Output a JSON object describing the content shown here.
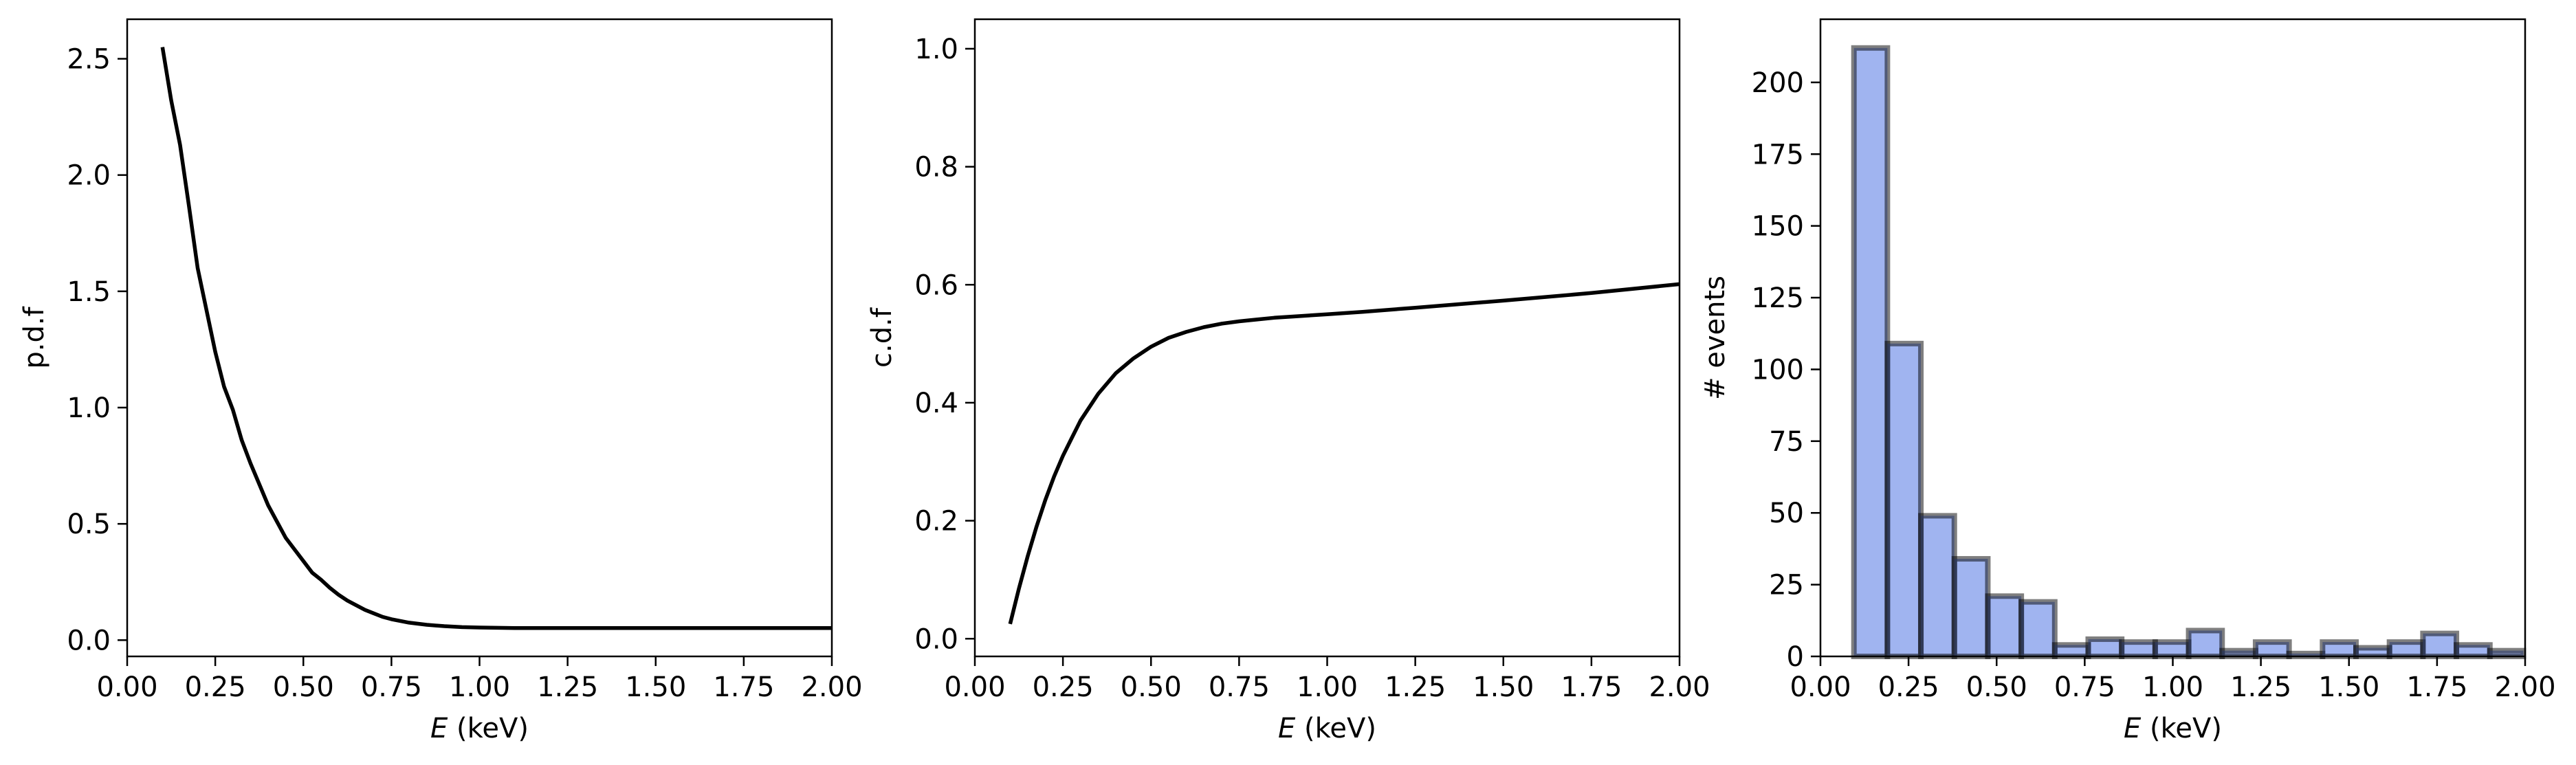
{
  "figure": {
    "background": "#ffffff"
  },
  "chart_data": [
    {
      "type": "line",
      "id": "pdf",
      "xlabel_var": "E",
      "xlabel_unit": " (keV)",
      "ylabel": "p.d.f",
      "xlim": [
        0.0,
        2.0
      ],
      "ylim": [
        -0.07,
        2.67
      ],
      "xticks": [
        0.0,
        0.25,
        0.5,
        0.75,
        1.0,
        1.25,
        1.5,
        1.75,
        2.0
      ],
      "xtick_labels": [
        "0.00",
        "0.25",
        "0.50",
        "0.75",
        "1.00",
        "1.25",
        "1.50",
        "1.75",
        "2.00"
      ],
      "yticks": [
        0.0,
        0.5,
        1.0,
        1.5,
        2.0,
        2.5
      ],
      "ytick_labels": [
        "0.0",
        "0.5",
        "1.0",
        "1.5",
        "2.0",
        "2.5"
      ],
      "grid": false,
      "series": [
        {
          "color": "#000000",
          "x": [
            0.1,
            0.125,
            0.15,
            0.175,
            0.2,
            0.225,
            0.25,
            0.275,
            0.3,
            0.325,
            0.35,
            0.375,
            0.4,
            0.425,
            0.45,
            0.475,
            0.5,
            0.525,
            0.55,
            0.575,
            0.6,
            0.625,
            0.65,
            0.675,
            0.7,
            0.725,
            0.75,
            0.8,
            0.85,
            0.9,
            0.95,
            1.0,
            1.05,
            1.1,
            1.2,
            1.4,
            1.6,
            1.8,
            2.0
          ],
          "y": [
            2.55,
            2.32,
            2.13,
            1.87,
            1.6,
            1.42,
            1.24,
            1.09,
            0.99,
            0.86,
            0.76,
            0.67,
            0.58,
            0.51,
            0.44,
            0.39,
            0.34,
            0.29,
            0.26,
            0.225,
            0.195,
            0.17,
            0.15,
            0.13,
            0.115,
            0.1,
            0.09,
            0.075,
            0.066,
            0.06,
            0.056,
            0.054,
            0.053,
            0.052,
            0.052,
            0.052,
            0.052,
            0.052,
            0.052
          ]
        }
      ]
    },
    {
      "type": "line",
      "id": "cdf",
      "xlabel_var": "E",
      "xlabel_unit": " (keV)",
      "ylabel": "c.d.f",
      "xlim": [
        0.0,
        2.0
      ],
      "ylim": [
        -0.03,
        1.05
      ],
      "xticks": [
        0.0,
        0.25,
        0.5,
        0.75,
        1.0,
        1.25,
        1.5,
        1.75,
        2.0
      ],
      "xtick_labels": [
        "0.00",
        "0.25",
        "0.50",
        "0.75",
        "1.00",
        "1.25",
        "1.50",
        "1.75",
        "2.00"
      ],
      "yticks": [
        0.0,
        0.2,
        0.4,
        0.6,
        0.8,
        1.0
      ],
      "ytick_labels": [
        "0.0",
        "0.2",
        "0.4",
        "0.6",
        "0.8",
        "1.0"
      ],
      "grid": false,
      "series": [
        {
          "color": "#000000",
          "x": [
            0.1,
            0.125,
            0.15,
            0.175,
            0.2,
            0.225,
            0.25,
            0.275,
            0.3,
            0.35,
            0.4,
            0.45,
            0.5,
            0.55,
            0.6,
            0.65,
            0.7,
            0.75,
            0.8,
            0.85,
            0.9,
            1.0,
            1.1,
            1.25,
            1.5,
            1.75,
            2.0
          ],
          "y": [
            0.025,
            0.085,
            0.14,
            0.19,
            0.235,
            0.275,
            0.31,
            0.34,
            0.37,
            0.415,
            0.45,
            0.475,
            0.495,
            0.51,
            0.52,
            0.528,
            0.534,
            0.538,
            0.541,
            0.544,
            0.546,
            0.55,
            0.554,
            0.561,
            0.573,
            0.586,
            0.601
          ]
        }
      ]
    },
    {
      "type": "bar",
      "id": "histogram",
      "xlabel_var": "E",
      "xlabel_unit": " (keV)",
      "ylabel": "# events",
      "xlim": [
        0.0,
        2.0
      ],
      "ylim": [
        0,
        222
      ],
      "xticks": [
        0.0,
        0.25,
        0.5,
        0.75,
        1.0,
        1.25,
        1.5,
        1.75,
        2.0
      ],
      "xtick_labels": [
        "0.00",
        "0.25",
        "0.50",
        "0.75",
        "1.00",
        "1.25",
        "1.50",
        "1.75",
        "2.00"
      ],
      "yticks": [
        0,
        25,
        50,
        75,
        100,
        125,
        150,
        175,
        200
      ],
      "ytick_labels": [
        "0",
        "25",
        "50",
        "75",
        "100",
        "125",
        "150",
        "175",
        "200"
      ],
      "grid": false,
      "bar_fill": "#4169e1",
      "bar_fill_opacity": 0.5,
      "bar_edge": "#000000",
      "bar_edge_opacity": 0.5,
      "bins": [
        {
          "start": 0.095,
          "end": 0.19,
          "count": 212
        },
        {
          "start": 0.19,
          "end": 0.285,
          "count": 109
        },
        {
          "start": 0.285,
          "end": 0.38,
          "count": 49
        },
        {
          "start": 0.38,
          "end": 0.475,
          "count": 34
        },
        {
          "start": 0.475,
          "end": 0.57,
          "count": 21
        },
        {
          "start": 0.57,
          "end": 0.665,
          "count": 19
        },
        {
          "start": 0.665,
          "end": 0.76,
          "count": 4
        },
        {
          "start": 0.76,
          "end": 0.855,
          "count": 6
        },
        {
          "start": 0.855,
          "end": 0.95,
          "count": 5
        },
        {
          "start": 0.95,
          "end": 1.045,
          "count": 5
        },
        {
          "start": 1.045,
          "end": 1.14,
          "count": 9
        },
        {
          "start": 1.14,
          "end": 1.235,
          "count": 2
        },
        {
          "start": 1.235,
          "end": 1.33,
          "count": 5
        },
        {
          "start": 1.33,
          "end": 1.425,
          "count": 1
        },
        {
          "start": 1.425,
          "end": 1.52,
          "count": 5
        },
        {
          "start": 1.52,
          "end": 1.615,
          "count": 3
        },
        {
          "start": 1.615,
          "end": 1.71,
          "count": 5
        },
        {
          "start": 1.71,
          "end": 1.805,
          "count": 8
        },
        {
          "start": 1.805,
          "end": 1.9,
          "count": 4
        },
        {
          "start": 1.9,
          "end": 1.995,
          "count": 2
        }
      ]
    }
  ]
}
